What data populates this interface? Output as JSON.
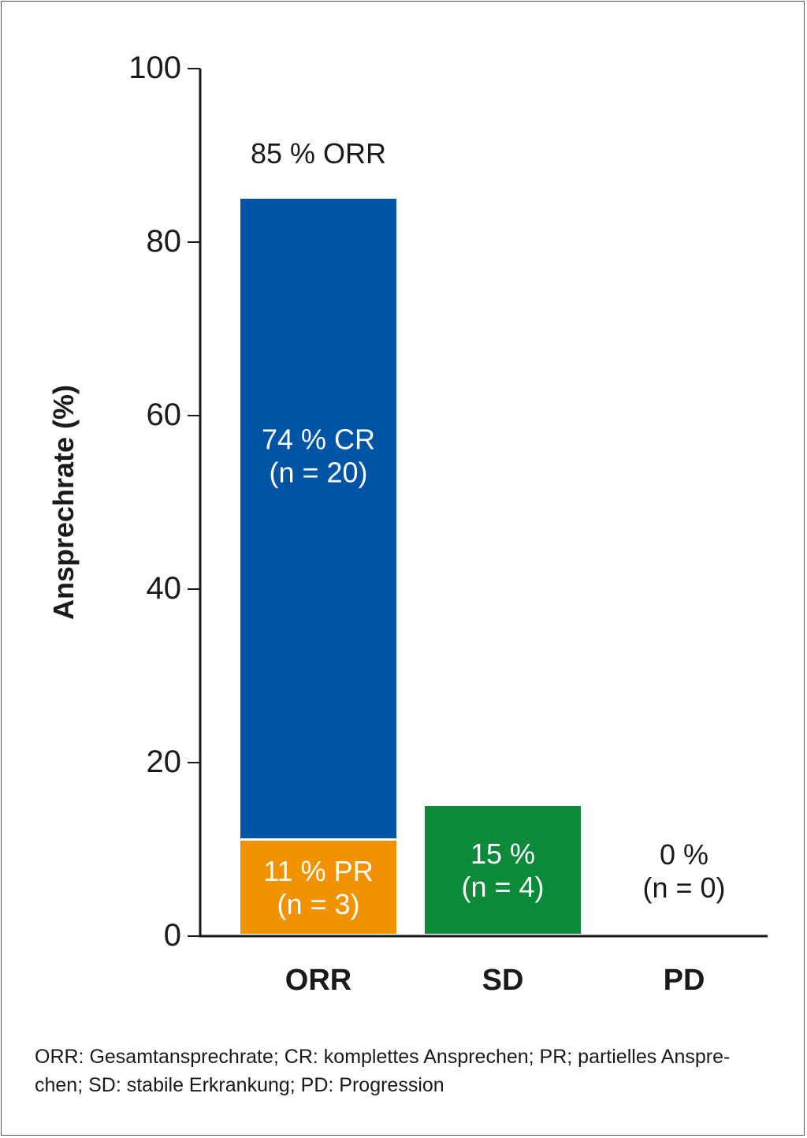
{
  "chart_data": {
    "type": "bar",
    "stacked": true,
    "categories": [
      "ORR",
      "SD",
      "PD"
    ],
    "ylabel": "Ansprechrate (%)",
    "ylim": [
      0,
      100
    ],
    "yticks": [
      0,
      20,
      40,
      60,
      80,
      100
    ],
    "grid": false,
    "bars": [
      {
        "category": "ORR",
        "total_label": "85 % ORR",
        "segments": [
          {
            "value": 11,
            "color": "#f39200",
            "lines": [
              "11 % PR",
              "(n = 3)"
            ]
          },
          {
            "value": 74,
            "color": "#0054a6",
            "lines": [
              "74 % CR",
              "(n = 20)"
            ]
          }
        ]
      },
      {
        "category": "SD",
        "segments": [
          {
            "value": 15,
            "color": "#0b8a3a",
            "lines": [
              "15 %",
              "(n = 4)"
            ]
          }
        ]
      },
      {
        "category": "PD",
        "segments": [
          {
            "value": 0,
            "color": "#ffffff",
            "lines": [
              "0 %",
              "(n = 0)"
            ]
          }
        ]
      }
    ]
  },
  "footnote": {
    "line1": "ORR: Gesamtansprechrate; CR: komplettes Ansprechen; PR; partielles Anspre-",
    "line2": "chen; SD: stabile Erkrankung; PD: Progression"
  }
}
